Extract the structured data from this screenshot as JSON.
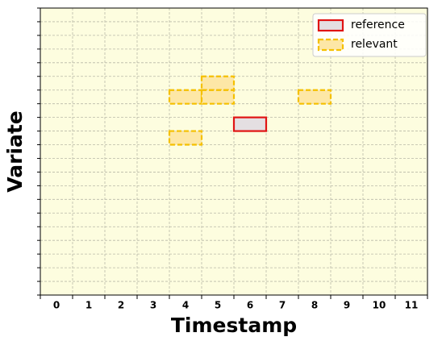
{
  "chart_data": {
    "type": "cells",
    "xlabel": "Timestamp",
    "ylabel": "Variate",
    "categories": [
      "0",
      "1",
      "2",
      "3",
      "4",
      "5",
      "6",
      "7",
      "8",
      "9",
      "10",
      "11"
    ],
    "xlim": [
      0,
      12
    ],
    "ylim": [
      0,
      21
    ],
    "yticks": [
      0,
      1,
      2,
      3,
      4,
      5,
      6,
      7,
      8,
      9,
      10,
      11,
      12,
      13,
      14,
      15,
      16,
      17,
      18,
      19,
      20,
      21
    ],
    "y_inverted": true,
    "grid": true,
    "background": "#fdfddf",
    "legend": "upper right",
    "series": [
      {
        "name": "reference",
        "color": "#e01414",
        "fill": "#e4dfe2",
        "dashed": false,
        "x": [
          6
        ],
        "y": [
          8
        ]
      },
      {
        "name": "relevant",
        "color": "#f5c000",
        "fill": "#fde7a6",
        "dashed": true,
        "x": [
          4,
          5,
          5,
          8,
          4
        ],
        "y": [
          6,
          5,
          6,
          6,
          9
        ]
      }
    ]
  }
}
